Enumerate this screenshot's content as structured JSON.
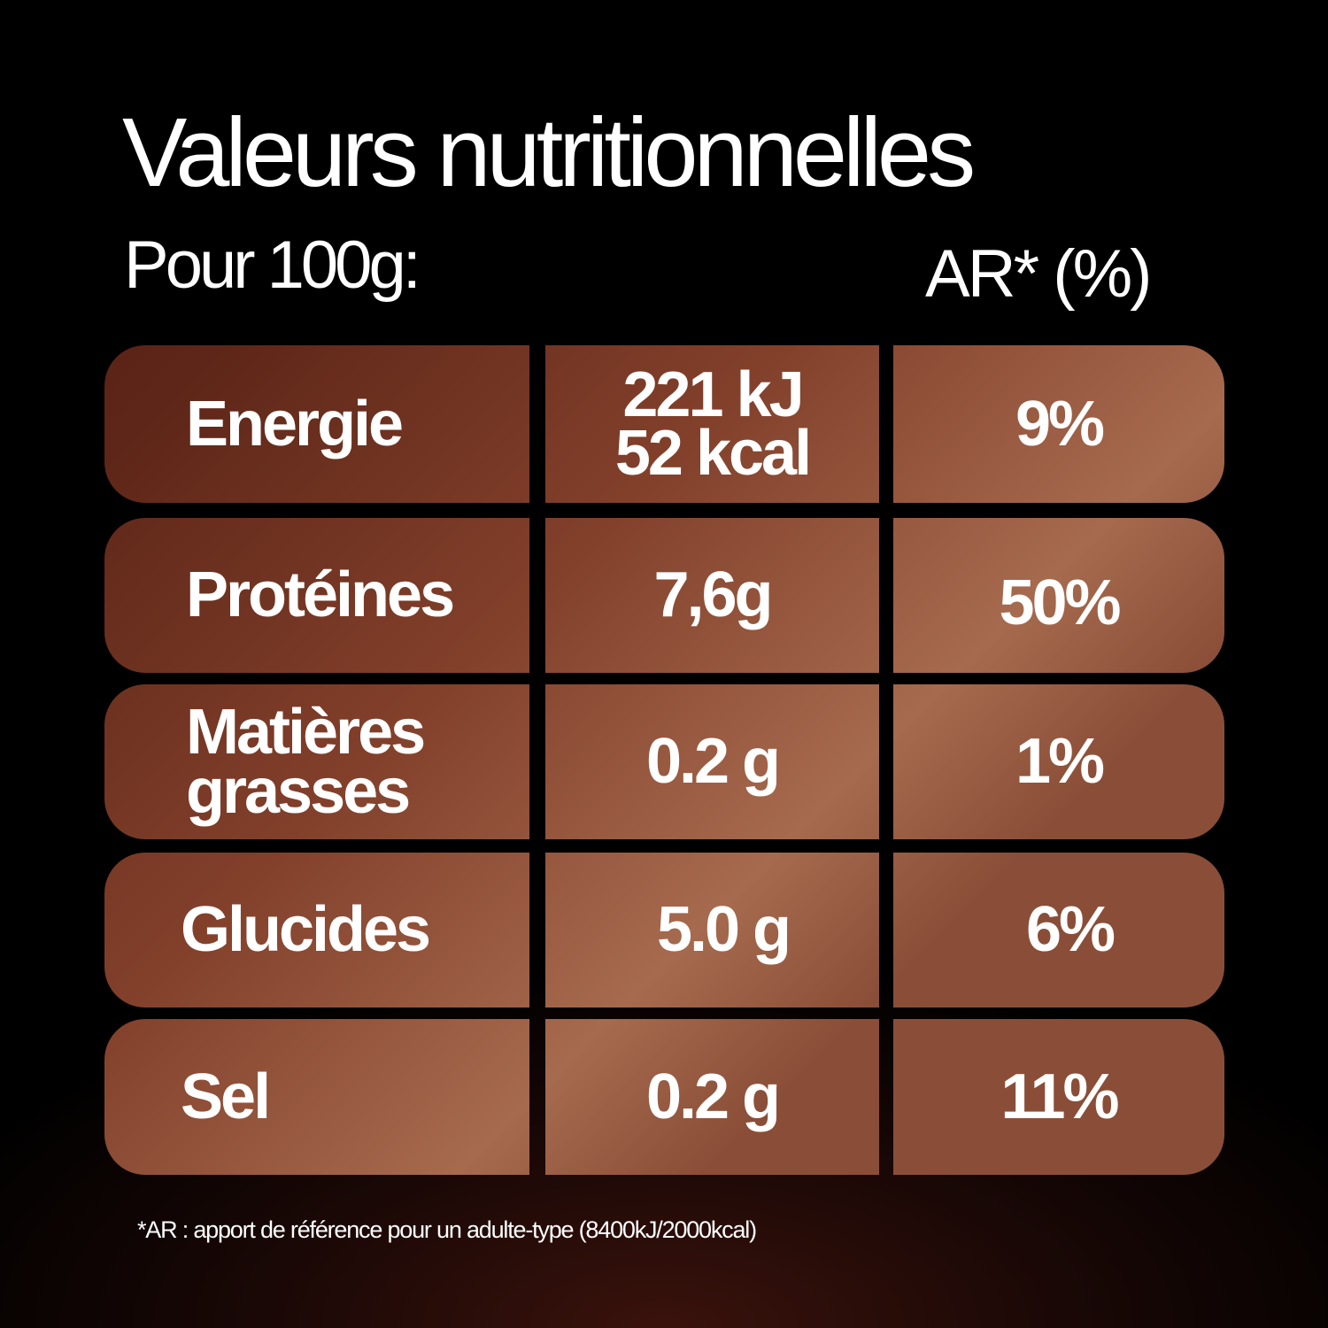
{
  "title": "Valeurs nutritionnelles",
  "subtitle": "Pour 100g:",
  "ar_header": "AR* (%)",
  "rows": [
    {
      "name": "Energie",
      "value": [
        "221 kJ",
        "52 kcal"
      ],
      "ar": "9%"
    },
    {
      "name": "Matières grasses",
      "value": [
        "0.2 g"
      ],
      "ar": "1%"
    },
    {
      "name": "Protéines",
      "value": [
        "7,6g"
      ],
      "ar": "50%"
    },
    {
      "name": "Glucides",
      "value": [
        "5.0 g"
      ],
      "ar": "6%"
    },
    {
      "name": "Sel",
      "value": [
        "0.2 g"
      ],
      "ar": "11%"
    }
  ],
  "table": [
    {
      "name": "Energie",
      "value": [
        "221 kJ",
        "52 kcal"
      ],
      "ar": "9%"
    },
    {
      "name": "Protéines",
      "value": [
        "7,6g"
      ],
      "ar": "50%"
    },
    {
      "name": "Matières grasses",
      "value": [
        "0.2 g"
      ],
      "ar": "1%"
    },
    {
      "name": "Glucides",
      "value": [
        "5.0 g"
      ],
      "ar": "6%"
    },
    {
      "name": "Sel",
      "value": [
        "0.2 g"
      ],
      "ar": "11%"
    }
  ],
  "footnote": "*AR : apport de référence pour un adulte-type (8400kJ/2000kcal)",
  "colors": {
    "background": "#000000",
    "cell_dark": "#4a1a10",
    "cell_light": "#a66a4e",
    "text": "#ffffff"
  }
}
